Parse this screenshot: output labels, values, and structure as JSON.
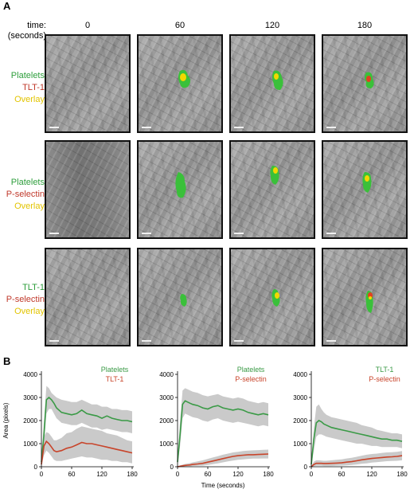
{
  "colors": {
    "green": "#2e9e3c",
    "red": "#c0392b",
    "yellow": "#e2c400",
    "chart_green": "#3a9a46",
    "chart_red": "#c8442a",
    "band": "#c4c4c4"
  },
  "panel_a": {
    "letter": "A",
    "time_title": [
      "time:",
      "(seconds)"
    ],
    "time_points": [
      "0",
      "60",
      "120",
      "180"
    ],
    "rows": [
      {
        "labels": [
          "Platelets",
          "TLT-1",
          "Overlay"
        ],
        "label_colors": [
          "green",
          "red",
          "yellow"
        ]
      },
      {
        "labels": [
          "Platelets",
          "P-selectin",
          "Overlay"
        ],
        "label_colors": [
          "green",
          "red",
          "yellow"
        ]
      },
      {
        "labels": [
          "TLT-1",
          "P-selectin",
          "Overlay"
        ],
        "label_colors": [
          "green",
          "red",
          "yellow"
        ]
      }
    ]
  },
  "panel_b": {
    "letter": "B",
    "ylabel": "Area (pixels)",
    "xlabel": "Time (seconds)"
  },
  "chart_data": [
    {
      "type": "line",
      "legend": [
        "Platelets",
        "TLT-1"
      ],
      "ylabel": "Area (pixels)",
      "xlabel": "",
      "xlim": [
        0,
        180
      ],
      "ylim": [
        0,
        4000
      ],
      "xticks": [
        "0",
        "60",
        "120",
        "180"
      ],
      "yticks": [
        "0",
        "1000",
        "2000",
        "3000",
        "4000"
      ],
      "x": [
        0,
        5,
        10,
        15,
        20,
        25,
        30,
        40,
        50,
        60,
        70,
        80,
        90,
        100,
        110,
        120,
        130,
        140,
        150,
        160,
        170,
        180
      ],
      "series": [
        {
          "name": "Platelets",
          "values": [
            200,
            1400,
            2900,
            3000,
            2900,
            2750,
            2550,
            2350,
            2300,
            2250,
            2300,
            2450,
            2300,
            2250,
            2200,
            2100,
            2200,
            2100,
            2050,
            2000,
            2000,
            1950
          ],
          "upper": [
            300,
            2000,
            3500,
            3400,
            3200,
            3100,
            3000,
            2900,
            2850,
            2800,
            2800,
            2900,
            2800,
            2700,
            2700,
            2600,
            2600,
            2500,
            2500,
            2450,
            2450,
            2400
          ],
          "lower": [
            100,
            900,
            2300,
            2500,
            2500,
            2300,
            2100,
            1900,
            1850,
            1800,
            1800,
            1900,
            1800,
            1700,
            1700,
            1600,
            1650,
            1600,
            1550,
            1500,
            1500,
            1450
          ]
        },
        {
          "name": "TLT-1",
          "values": [
            100,
            900,
            1100,
            1000,
            850,
            700,
            650,
            700,
            800,
            850,
            950,
            1050,
            1000,
            1000,
            950,
            900,
            850,
            800,
            750,
            700,
            650,
            600
          ],
          "upper": [
            150,
            1300,
            1500,
            1450,
            1300,
            1150,
            1150,
            1250,
            1450,
            1500,
            1650,
            1750,
            1700,
            1650,
            1600,
            1550,
            1450,
            1400,
            1350,
            1250,
            1150,
            1100
          ],
          "lower": [
            50,
            500,
            700,
            600,
            450,
            300,
            250,
            250,
            300,
            350,
            400,
            450,
            400,
            400,
            350,
            300,
            300,
            250,
            250,
            200,
            200,
            150
          ]
        }
      ]
    },
    {
      "type": "line",
      "legend": [
        "Platelets",
        "P-selectin"
      ],
      "ylabel": "",
      "xlabel": "Time (seconds)",
      "xlim": [
        0,
        180
      ],
      "ylim": [
        0,
        4000
      ],
      "xticks": [
        "0",
        "60",
        "120",
        "180"
      ],
      "yticks": [
        "0",
        "1000",
        "2000",
        "3000",
        "4000"
      ],
      "x": [
        0,
        5,
        10,
        15,
        20,
        25,
        30,
        40,
        50,
        60,
        70,
        80,
        90,
        100,
        110,
        120,
        130,
        140,
        150,
        160,
        170,
        180
      ],
      "series": [
        {
          "name": "Platelets",
          "values": [
            200,
            1400,
            2700,
            2850,
            2800,
            2750,
            2700,
            2650,
            2550,
            2500,
            2600,
            2650,
            2550,
            2500,
            2450,
            2500,
            2450,
            2350,
            2300,
            2250,
            2300,
            2250
          ],
          "upper": [
            300,
            2000,
            3300,
            3400,
            3350,
            3300,
            3250,
            3200,
            3100,
            3050,
            3100,
            3150,
            3050,
            3000,
            2950,
            3000,
            2950,
            2850,
            2800,
            2750,
            2800,
            2750
          ],
          "lower": [
            100,
            900,
            2100,
            2300,
            2250,
            2200,
            2150,
            2100,
            2000,
            1950,
            2050,
            2100,
            2000,
            1950,
            1900,
            1950,
            1900,
            1850,
            1800,
            1750,
            1800,
            1750
          ]
        },
        {
          "name": "P-selectin",
          "values": [
            0,
            20,
            40,
            60,
            70,
            80,
            100,
            120,
            150,
            200,
            250,
            300,
            350,
            400,
            450,
            480,
            500,
            520,
            520,
            530,
            540,
            550
          ],
          "upper": [
            20,
            60,
            90,
            120,
            140,
            160,
            190,
            230,
            280,
            340,
            400,
            460,
            520,
            570,
            620,
            650,
            680,
            700,
            710,
            720,
            730,
            740
          ],
          "lower": [
            0,
            0,
            0,
            10,
            20,
            20,
            30,
            40,
            50,
            80,
            110,
            150,
            190,
            230,
            270,
            300,
            320,
            340,
            350,
            350,
            360,
            360
          ]
        }
      ]
    },
    {
      "type": "line",
      "legend": [
        "TLT-1",
        "P-selectin"
      ],
      "ylabel": "",
      "xlabel": "",
      "xlim": [
        0,
        180
      ],
      "ylim": [
        0,
        4000
      ],
      "xticks": [
        "0",
        "60",
        "120",
        "180"
      ],
      "yticks": [
        "0",
        "1000",
        "2000",
        "3000",
        "4000"
      ],
      "x": [
        0,
        5,
        10,
        15,
        20,
        25,
        30,
        40,
        50,
        60,
        70,
        80,
        90,
        100,
        110,
        120,
        130,
        140,
        150,
        160,
        170,
        180
      ],
      "series": [
        {
          "name": "TLT-1",
          "values": [
            100,
            1200,
            1900,
            2000,
            1950,
            1850,
            1800,
            1700,
            1650,
            1600,
            1550,
            1500,
            1450,
            1400,
            1350,
            1300,
            1250,
            1200,
            1200,
            1150,
            1150,
            1100
          ],
          "upper": [
            150,
            1700,
            2600,
            2700,
            2500,
            2350,
            2250,
            2150,
            2100,
            2050,
            2000,
            1950,
            1900,
            1800,
            1750,
            1700,
            1600,
            1550,
            1500,
            1450,
            1450,
            1400
          ],
          "lower": [
            50,
            700,
            1300,
            1400,
            1400,
            1350,
            1300,
            1250,
            1200,
            1150,
            1100,
            1050,
            1000,
            1000,
            950,
            900,
            900,
            850,
            850,
            850,
            850,
            800
          ]
        },
        {
          "name": "P-selectin",
          "values": [
            0,
            100,
            150,
            150,
            150,
            140,
            140,
            150,
            160,
            170,
            200,
            220,
            260,
            300,
            330,
            360,
            380,
            400,
            420,
            430,
            450,
            480
          ],
          "upper": [
            20,
            220,
            280,
            280,
            270,
            260,
            260,
            280,
            300,
            320,
            360,
            390,
            430,
            480,
            520,
            550,
            570,
            600,
            620,
            630,
            650,
            680
          ],
          "lower": [
            0,
            20,
            40,
            40,
            40,
            30,
            30,
            30,
            40,
            50,
            60,
            80,
            100,
            130,
            150,
            180,
            200,
            220,
            240,
            250,
            260,
            280
          ]
        }
      ]
    }
  ]
}
